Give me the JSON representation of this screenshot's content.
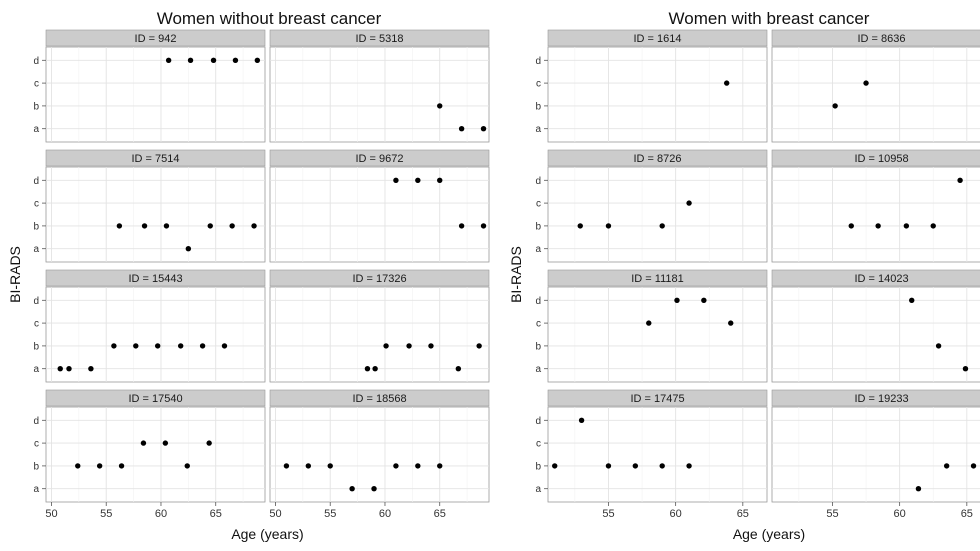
{
  "chart_data": [
    {
      "type": "scatter",
      "title": "Women without breast cancer",
      "xlabel": "Age (years)",
      "ylabel": "BI-RADS",
      "categories_y": [
        "a",
        "b",
        "c",
        "d"
      ],
      "x_ticks": [
        50,
        55,
        60,
        65
      ],
      "xlim": [
        49.5,
        69.5
      ],
      "grid": true,
      "panels": [
        {
          "label": "ID = 942",
          "points": [
            {
              "x": 60.7,
              "y": "d"
            },
            {
              "x": 62.7,
              "y": "d"
            },
            {
              "x": 64.8,
              "y": "d"
            },
            {
              "x": 66.8,
              "y": "d"
            },
            {
              "x": 68.8,
              "y": "d"
            }
          ]
        },
        {
          "label": "ID = 5318",
          "points": [
            {
              "x": 65.0,
              "y": "b"
            },
            {
              "x": 67.0,
              "y": "a"
            },
            {
              "x": 69.0,
              "y": "a"
            }
          ]
        },
        {
          "label": "ID = 7514",
          "points": [
            {
              "x": 56.2,
              "y": "b"
            },
            {
              "x": 58.5,
              "y": "b"
            },
            {
              "x": 60.5,
              "y": "b"
            },
            {
              "x": 62.5,
              "y": "a"
            },
            {
              "x": 64.5,
              "y": "b"
            },
            {
              "x": 66.5,
              "y": "b"
            },
            {
              "x": 68.5,
              "y": "b"
            }
          ]
        },
        {
          "label": "ID = 9672",
          "points": [
            {
              "x": 61.0,
              "y": "d"
            },
            {
              "x": 63.0,
              "y": "d"
            },
            {
              "x": 65.0,
              "y": "d"
            },
            {
              "x": 67.0,
              "y": "b"
            },
            {
              "x": 69.0,
              "y": "b"
            }
          ]
        },
        {
          "label": "ID = 15443",
          "points": [
            {
              "x": 50.8,
              "y": "a"
            },
            {
              "x": 51.6,
              "y": "a"
            },
            {
              "x": 53.6,
              "y": "a"
            },
            {
              "x": 55.7,
              "y": "b"
            },
            {
              "x": 57.7,
              "y": "b"
            },
            {
              "x": 59.7,
              "y": "b"
            },
            {
              "x": 61.8,
              "y": "b"
            },
            {
              "x": 63.8,
              "y": "b"
            },
            {
              "x": 65.8,
              "y": "b"
            }
          ]
        },
        {
          "label": "ID = 17326",
          "points": [
            {
              "x": 58.4,
              "y": "a"
            },
            {
              "x": 59.1,
              "y": "a"
            },
            {
              "x": 60.1,
              "y": "b"
            },
            {
              "x": 62.2,
              "y": "b"
            },
            {
              "x": 64.2,
              "y": "b"
            },
            {
              "x": 66.7,
              "y": "a"
            },
            {
              "x": 68.6,
              "y": "b"
            }
          ]
        },
        {
          "label": "ID = 17540",
          "points": [
            {
              "x": 52.4,
              "y": "b"
            },
            {
              "x": 54.4,
              "y": "b"
            },
            {
              "x": 56.4,
              "y": "b"
            },
            {
              "x": 58.4,
              "y": "c"
            },
            {
              "x": 60.4,
              "y": "c"
            },
            {
              "x": 62.4,
              "y": "b"
            },
            {
              "x": 64.4,
              "y": "c"
            }
          ]
        },
        {
          "label": "ID = 18568",
          "points": [
            {
              "x": 51.0,
              "y": "b"
            },
            {
              "x": 53.0,
              "y": "b"
            },
            {
              "x": 55.0,
              "y": "b"
            },
            {
              "x": 57.0,
              "y": "a"
            },
            {
              "x": 59.0,
              "y": "a"
            },
            {
              "x": 61.0,
              "y": "b"
            },
            {
              "x": 63.0,
              "y": "b"
            },
            {
              "x": 65.0,
              "y": "b"
            }
          ]
        }
      ]
    },
    {
      "type": "scatter",
      "title": "Women with breast cancer",
      "xlabel": "Age (years)",
      "ylabel": "BI-RADS",
      "categories_y": [
        "a",
        "b",
        "c",
        "d"
      ],
      "x_ticks": [
        55,
        60,
        65
      ],
      "xlim": [
        50.5,
        66.8
      ],
      "grid": true,
      "panels": [
        {
          "label": "ID = 1614",
          "points": [
            {
              "x": 63.8,
              "y": "c"
            }
          ]
        },
        {
          "label": "ID = 8636",
          "points": [
            {
              "x": 55.2,
              "y": "b"
            },
            {
              "x": 57.5,
              "y": "c"
            }
          ]
        },
        {
          "label": "ID = 8726",
          "points": [
            {
              "x": 52.9,
              "y": "b"
            },
            {
              "x": 55.0,
              "y": "b"
            },
            {
              "x": 59.0,
              "y": "b"
            },
            {
              "x": 61.0,
              "y": "c"
            }
          ]
        },
        {
          "label": "ID = 10958",
          "points": [
            {
              "x": 56.4,
              "y": "b"
            },
            {
              "x": 58.4,
              "y": "b"
            },
            {
              "x": 60.5,
              "y": "b"
            },
            {
              "x": 62.5,
              "y": "b"
            },
            {
              "x": 64.5,
              "y": "d"
            }
          ]
        },
        {
          "label": "ID = 11181",
          "points": [
            {
              "x": 58.0,
              "y": "c"
            },
            {
              "x": 60.1,
              "y": "d"
            },
            {
              "x": 62.1,
              "y": "d"
            },
            {
              "x": 64.1,
              "y": "c"
            }
          ]
        },
        {
          "label": "ID = 14023",
          "points": [
            {
              "x": 60.9,
              "y": "d"
            },
            {
              "x": 62.9,
              "y": "b"
            },
            {
              "x": 64.9,
              "y": "a"
            }
          ]
        },
        {
          "label": "ID = 17475",
          "points": [
            {
              "x": 51.0,
              "y": "b"
            },
            {
              "x": 53.0,
              "y": "d"
            },
            {
              "x": 55.0,
              "y": "b"
            },
            {
              "x": 57.0,
              "y": "b"
            },
            {
              "x": 59.0,
              "y": "b"
            },
            {
              "x": 61.0,
              "y": "b"
            }
          ]
        },
        {
          "label": "ID = 19233",
          "points": [
            {
              "x": 61.4,
              "y": "a"
            },
            {
              "x": 63.5,
              "y": "b"
            },
            {
              "x": 65.5,
              "y": "b"
            }
          ]
        }
      ]
    }
  ]
}
